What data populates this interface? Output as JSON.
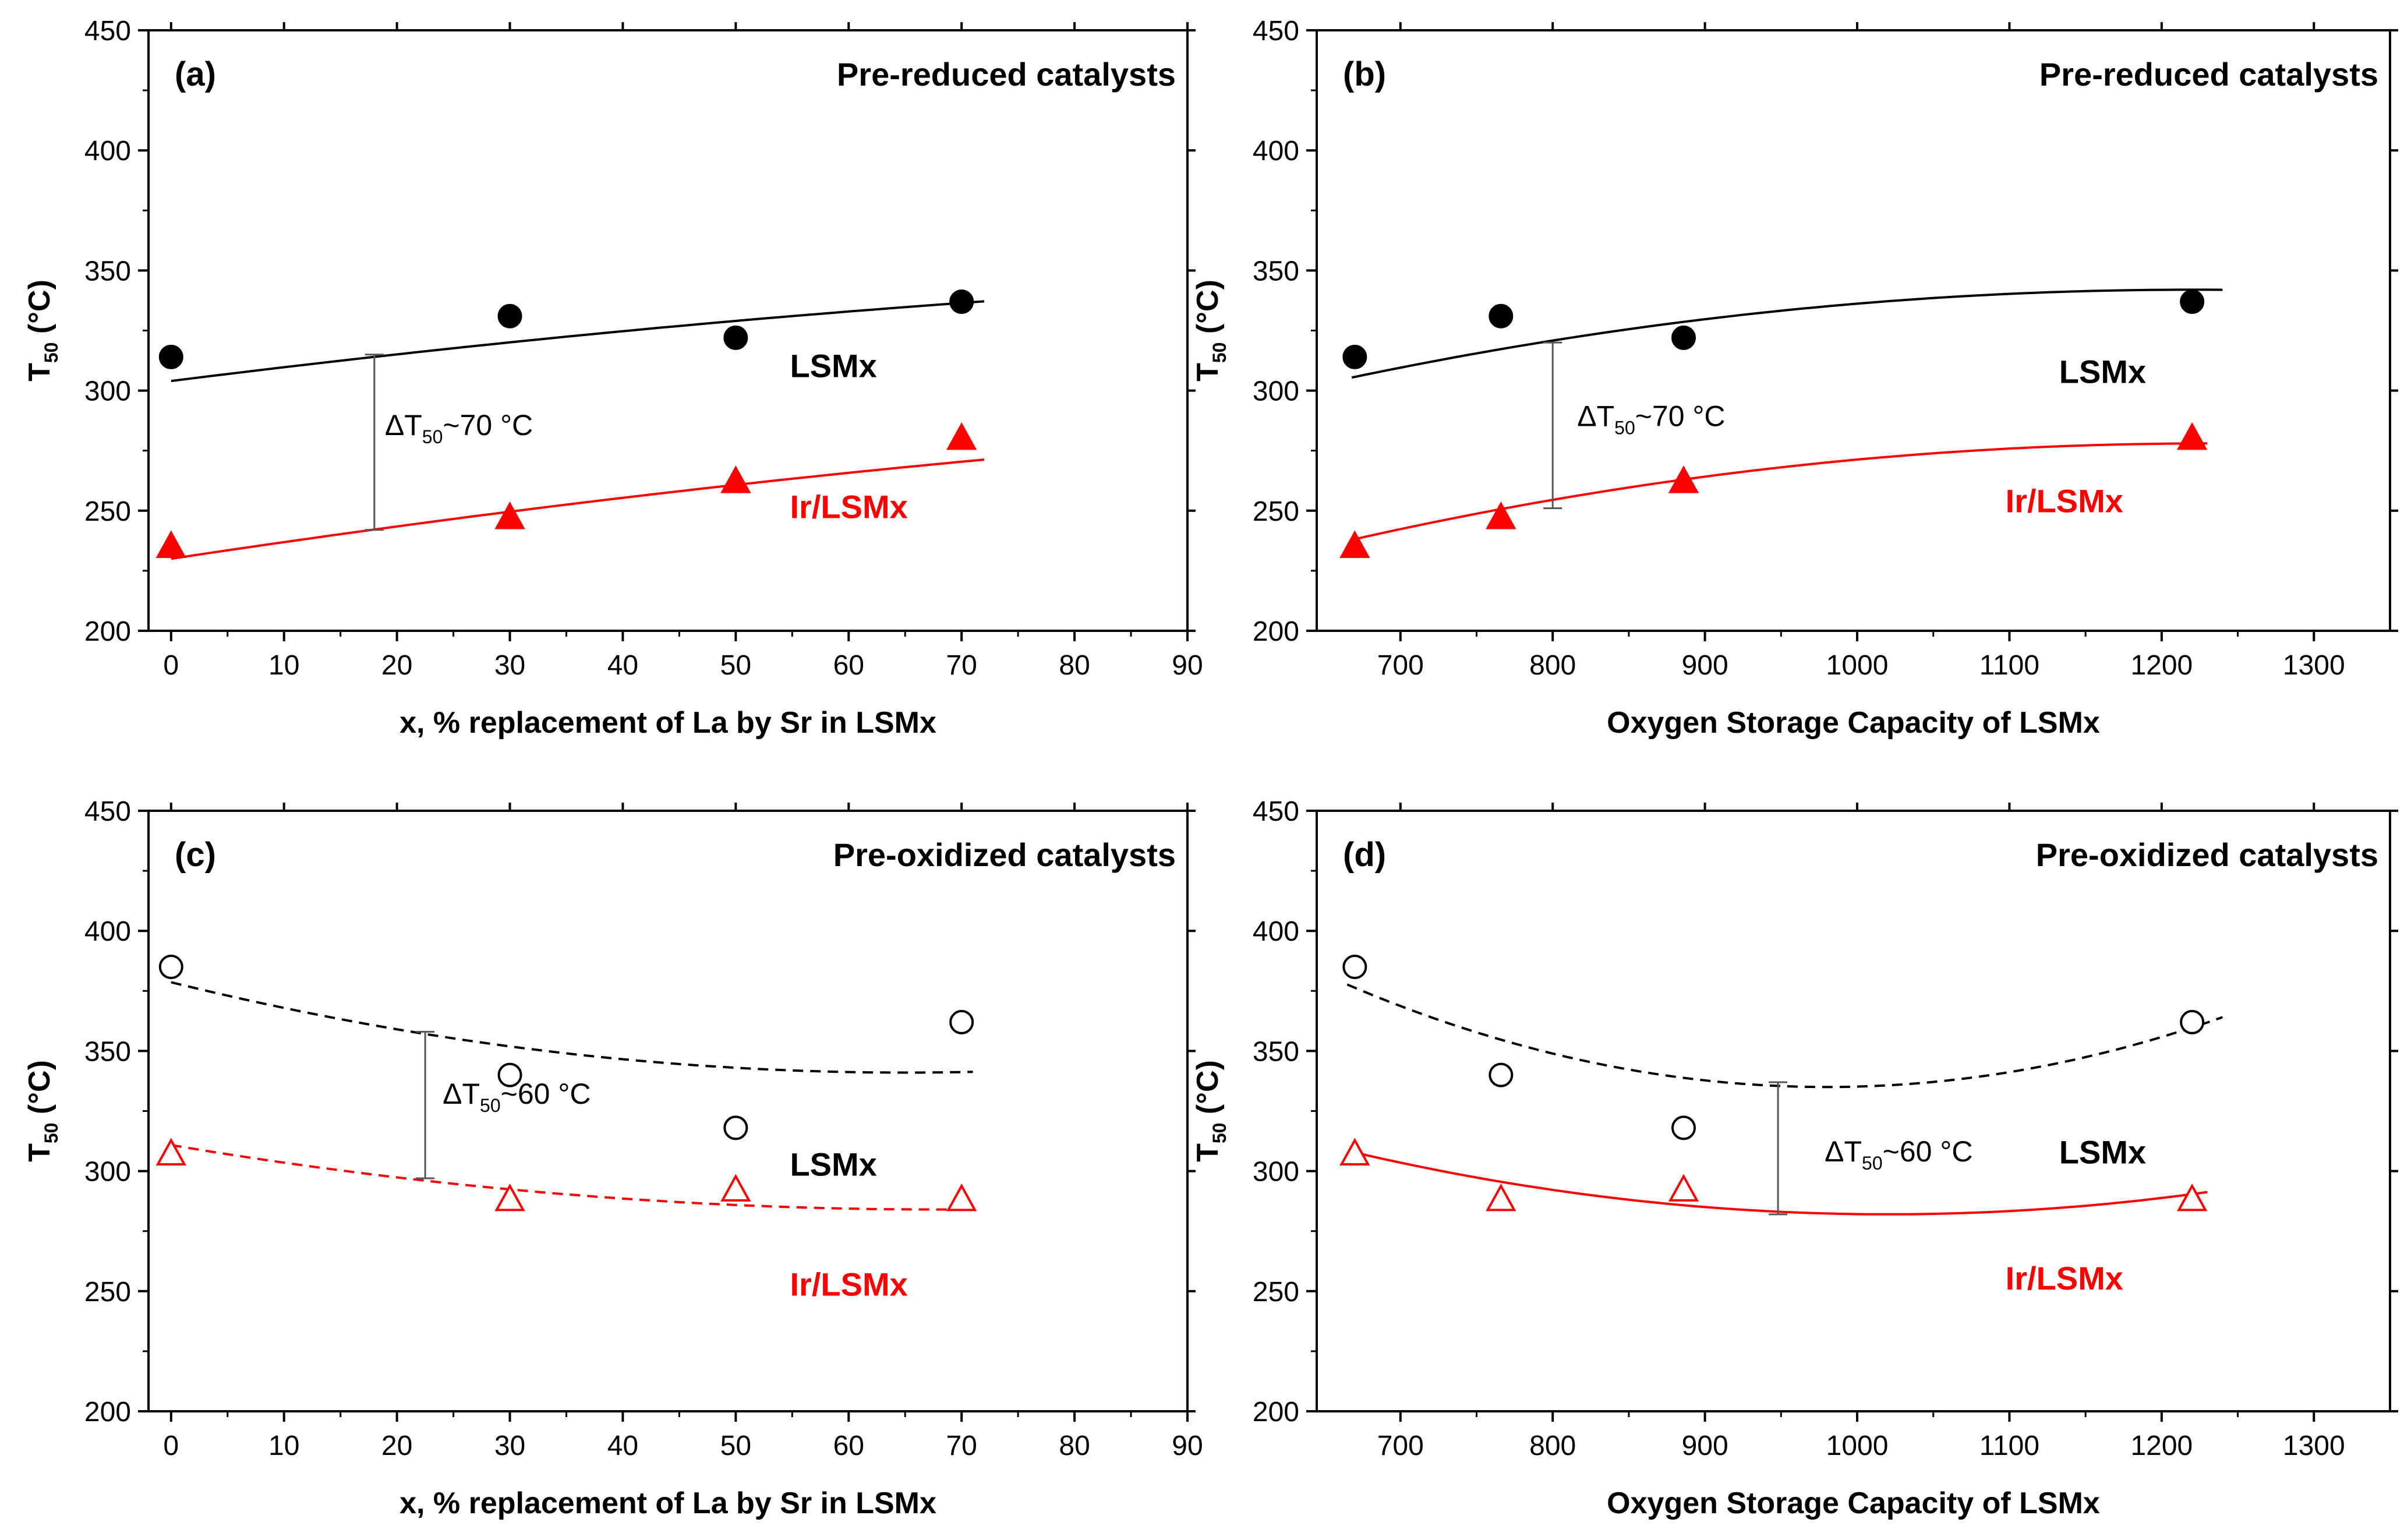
{
  "colors": {
    "lsmx": "#000000",
    "ir": "#ff0000",
    "axis": "#000000",
    "background": "#ffffff"
  },
  "chart_data": [
    {
      "type": "scatter",
      "panel_label": "(a)",
      "condition": "Pre-reduced catalysts",
      "xlabel": "x, % replacement of La by Sr in LSMx",
      "ylabel": "T",
      "ylabel_sub": "50",
      "ylabel_tail": " (°C)",
      "xlim": [
        -2,
        90
      ],
      "ylim": [
        200,
        450
      ],
      "xticks": [
        0,
        10,
        20,
        30,
        40,
        50,
        60,
        70,
        80,
        90
      ],
      "yticks": [
        200,
        250,
        300,
        350,
        400,
        450
      ],
      "series": [
        {
          "name": "LSMx",
          "color": "#000000",
          "marker": "circle",
          "filled": true,
          "line_style": "solid",
          "x": [
            0,
            30,
            50,
            70
          ],
          "y": [
            314,
            331,
            322,
            337
          ],
          "fit_x": [
            0,
            72
          ],
          "fit_coef": [
            304,
            0.59,
            -0.0018
          ]
        },
        {
          "name": "Ir/LSMx",
          "color": "#ff0000",
          "marker": "triangle",
          "filled": true,
          "line_style": "solid",
          "x": [
            0,
            30,
            50,
            70
          ],
          "y": [
            235,
            247,
            262,
            280
          ],
          "fit_x": [
            0,
            72
          ],
          "fit_coef": [
            230,
            0.71,
            -0.0019
          ]
        }
      ],
      "annotation": {
        "label": "ΔT",
        "sub": "50",
        "tail": "~70 °C",
        "x": 18,
        "y_low": 242,
        "y_high": 315
      }
    },
    {
      "type": "scatter",
      "panel_label": "(b)",
      "condition": "Pre-reduced catalysts",
      "xlabel": "Oxygen Storage Capacity of LSMx",
      "ylabel": "T",
      "ylabel_sub": "50",
      "ylabel_tail": " (°C)",
      "xlim": [
        645,
        1350
      ],
      "ylim": [
        200,
        450
      ],
      "xticks": [
        700,
        800,
        900,
        1000,
        1100,
        1200,
        1300
      ],
      "yticks": [
        200,
        250,
        300,
        350,
        400,
        450
      ],
      "series": [
        {
          "name": "LSMx",
          "color": "#000000",
          "marker": "circle",
          "filled": true,
          "line_style": "solid",
          "x": [
            670,
            766,
            886,
            1220
          ],
          "y": [
            314,
            331,
            322,
            337
          ],
          "fit_x": [
            668,
            1240
          ],
          "fit_xs": 1220,
          "fit_coef": [
            342,
            0,
            -0.00012
          ]
        },
        {
          "name": "Ir/LSMx",
          "color": "#ff0000",
          "marker": "triangle",
          "filled": true,
          "line_style": "solid",
          "x": [
            670,
            766,
            886,
            1220
          ],
          "y": [
            235,
            247,
            262,
            280
          ],
          "fit_x": [
            668,
            1230
          ],
          "fit_xs": 1230,
          "fit_coef": [
            278,
            0,
            -0.000127
          ]
        }
      ],
      "annotation": {
        "label": "ΔT",
        "sub": "50",
        "tail": "~70 °C",
        "x": 800,
        "y_low": 251,
        "y_high": 320
      }
    },
    {
      "type": "scatter",
      "panel_label": "(c)",
      "condition": "Pre-oxidized catalysts",
      "xlabel": "x, % replacement of La by Sr in LSMx",
      "ylabel": "T",
      "ylabel_sub": "50",
      "ylabel_tail": " (°C)",
      "xlim": [
        -2,
        90
      ],
      "ylim": [
        200,
        450
      ],
      "xticks": [
        0,
        10,
        20,
        30,
        40,
        50,
        60,
        70,
        80,
        90
      ],
      "yticks": [
        200,
        250,
        300,
        350,
        400,
        450
      ],
      "series": [
        {
          "name": "LSMx",
          "color": "#000000",
          "marker": "circle",
          "filled": false,
          "line_style": "dashed",
          "x": [
            0,
            30,
            50,
            70
          ],
          "y": [
            385,
            340,
            318,
            362
          ],
          "fit_x": [
            0,
            71
          ],
          "fit_xs": 65,
          "fit_coef": [
            341,
            0,
            0.0089
          ]
        },
        {
          "name": "Ir/LSMx",
          "color": "#ff0000",
          "marker": "triangle",
          "filled": false,
          "line_style": "dashed",
          "x": [
            0,
            30,
            50,
            70
          ],
          "y": [
            307,
            288,
            292,
            288
          ],
          "fit_x": [
            0,
            70
          ],
          "fit_xs": 68,
          "fit_coef": [
            284,
            0,
            0.0058
          ]
        }
      ],
      "annotation": {
        "label": "ΔT",
        "sub": "50",
        "tail": "~60 °C",
        "x": 22.5,
        "y_low": 297,
        "y_high": 358
      }
    },
    {
      "type": "scatter",
      "panel_label": "(d)",
      "condition": "Pre-oxidized catalysts",
      "xlabel": "Oxygen Storage Capacity of LSMx",
      "ylabel": "T",
      "ylabel_sub": "50",
      "ylabel_tail": " (°C)",
      "xlim": [
        645,
        1350
      ],
      "ylim": [
        200,
        450
      ],
      "xticks": [
        700,
        800,
        900,
        1000,
        1100,
        1200,
        1300
      ],
      "yticks": [
        200,
        250,
        300,
        350,
        400,
        450
      ],
      "series": [
        {
          "name": "LSMx",
          "color": "#000000",
          "marker": "circle",
          "filled": false,
          "line_style": "dashed",
          "x": [
            670,
            766,
            886,
            1220
          ],
          "y": [
            385,
            340,
            318,
            362
          ],
          "fit_x": [
            665,
            1240
          ],
          "fit_xs": 980,
          "fit_coef": [
            335,
            0,
            0.00043
          ]
        },
        {
          "name": "Ir/LSMx",
          "color": "#ff0000",
          "marker": "triangle",
          "filled": false,
          "line_style": "solid",
          "x": [
            670,
            766,
            886,
            1220
          ],
          "y": [
            307,
            288,
            292,
            288
          ],
          "fit_x": [
            670,
            1230
          ],
          "fit_xs": 1020,
          "fit_coef": [
            282,
            0,
            0.00021
          ]
        }
      ],
      "annotation": {
        "label": "ΔT",
        "sub": "50",
        "tail": "~60 °C",
        "x": 948,
        "y_low": 282,
        "y_high": 337
      }
    }
  ]
}
